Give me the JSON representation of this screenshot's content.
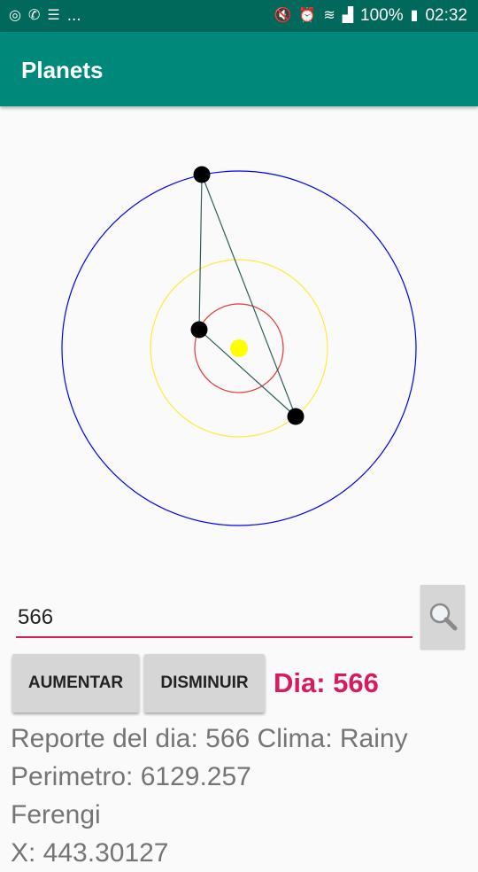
{
  "status_bar": {
    "left_icons": [
      "instagram-icon",
      "whatsapp-icon",
      "list-icon"
    ],
    "more": "...",
    "battery": "100%",
    "time": "02:32"
  },
  "app_bar": {
    "title": "Planets"
  },
  "colors": {
    "primary": "#00897b",
    "primary_dark": "#00695c",
    "accent": "#d81b60",
    "orbit_inner": "#e53935",
    "orbit_middle": "#ffeb3b",
    "orbit_outer": "#0000ff",
    "sun": "#ffff00",
    "planet": "#000000",
    "triangle": "#2f5f5a"
  },
  "search": {
    "value": "566",
    "placeholder": ""
  },
  "buttons": {
    "increase": "AUMENTAR",
    "decrease": "DISMINUIR"
  },
  "day_label": "Dia: 566",
  "report": {
    "line1": "Reporte del dia: 566 Clima: Rainy",
    "line2": "Perimetro: 6129.257",
    "line3": "Ferengi",
    "line4": "  X: 443.30127"
  }
}
